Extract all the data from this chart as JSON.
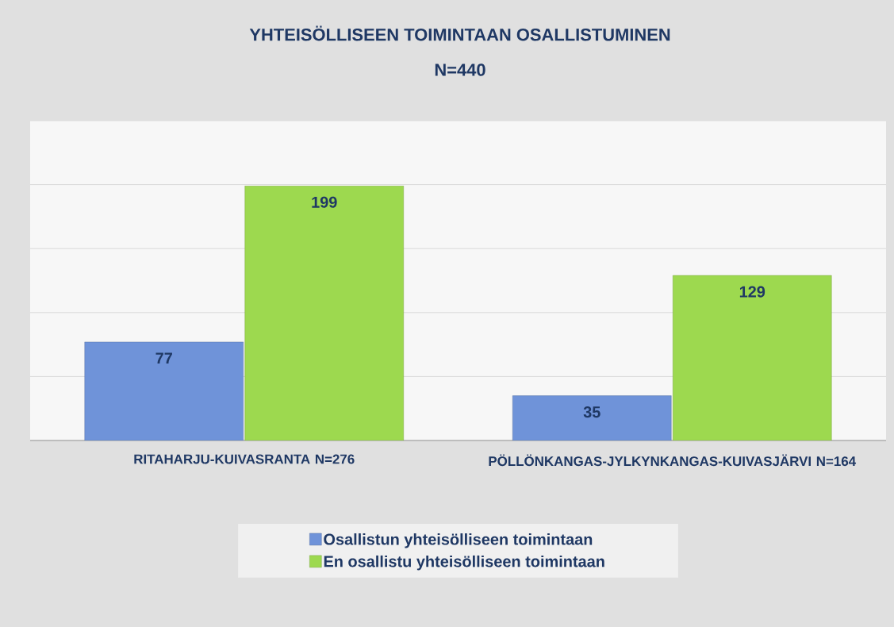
{
  "chart_data": {
    "type": "bar",
    "title": "YHTEISÖLLISEEN TOIMINTAAN OSALLISTUMINEN",
    "subtitle": "N=440",
    "categories": [
      "RITAHARJU-KUIVASRANTA N=276",
      "PÖLLÖNKANGAS-JYLKYNKANGAS-KUIVASJÄRVI N=164"
    ],
    "series": [
      {
        "name": "Osallistun yhteisölliseen toimintaan",
        "color": "#6f93d9",
        "values": [
          77,
          35
        ]
      },
      {
        "name": "En osallistu yhteisölliseen toimintaan",
        "color": "#9dd94f",
        "values": [
          199,
          129
        ]
      }
    ],
    "ylim": [
      0,
      250
    ],
    "yticks": [
      {
        "value": 0,
        "label": null
      },
      {
        "value": 50,
        "label": null
      },
      {
        "value": 100,
        "label": null
      },
      {
        "value": 150,
        "label": null
      },
      {
        "value": 200,
        "label": null
      },
      {
        "value": 250,
        "label": null
      }
    ],
    "tick_labels": "x",
    "grid": "y",
    "data_labels": true,
    "legend": "bottom"
  }
}
